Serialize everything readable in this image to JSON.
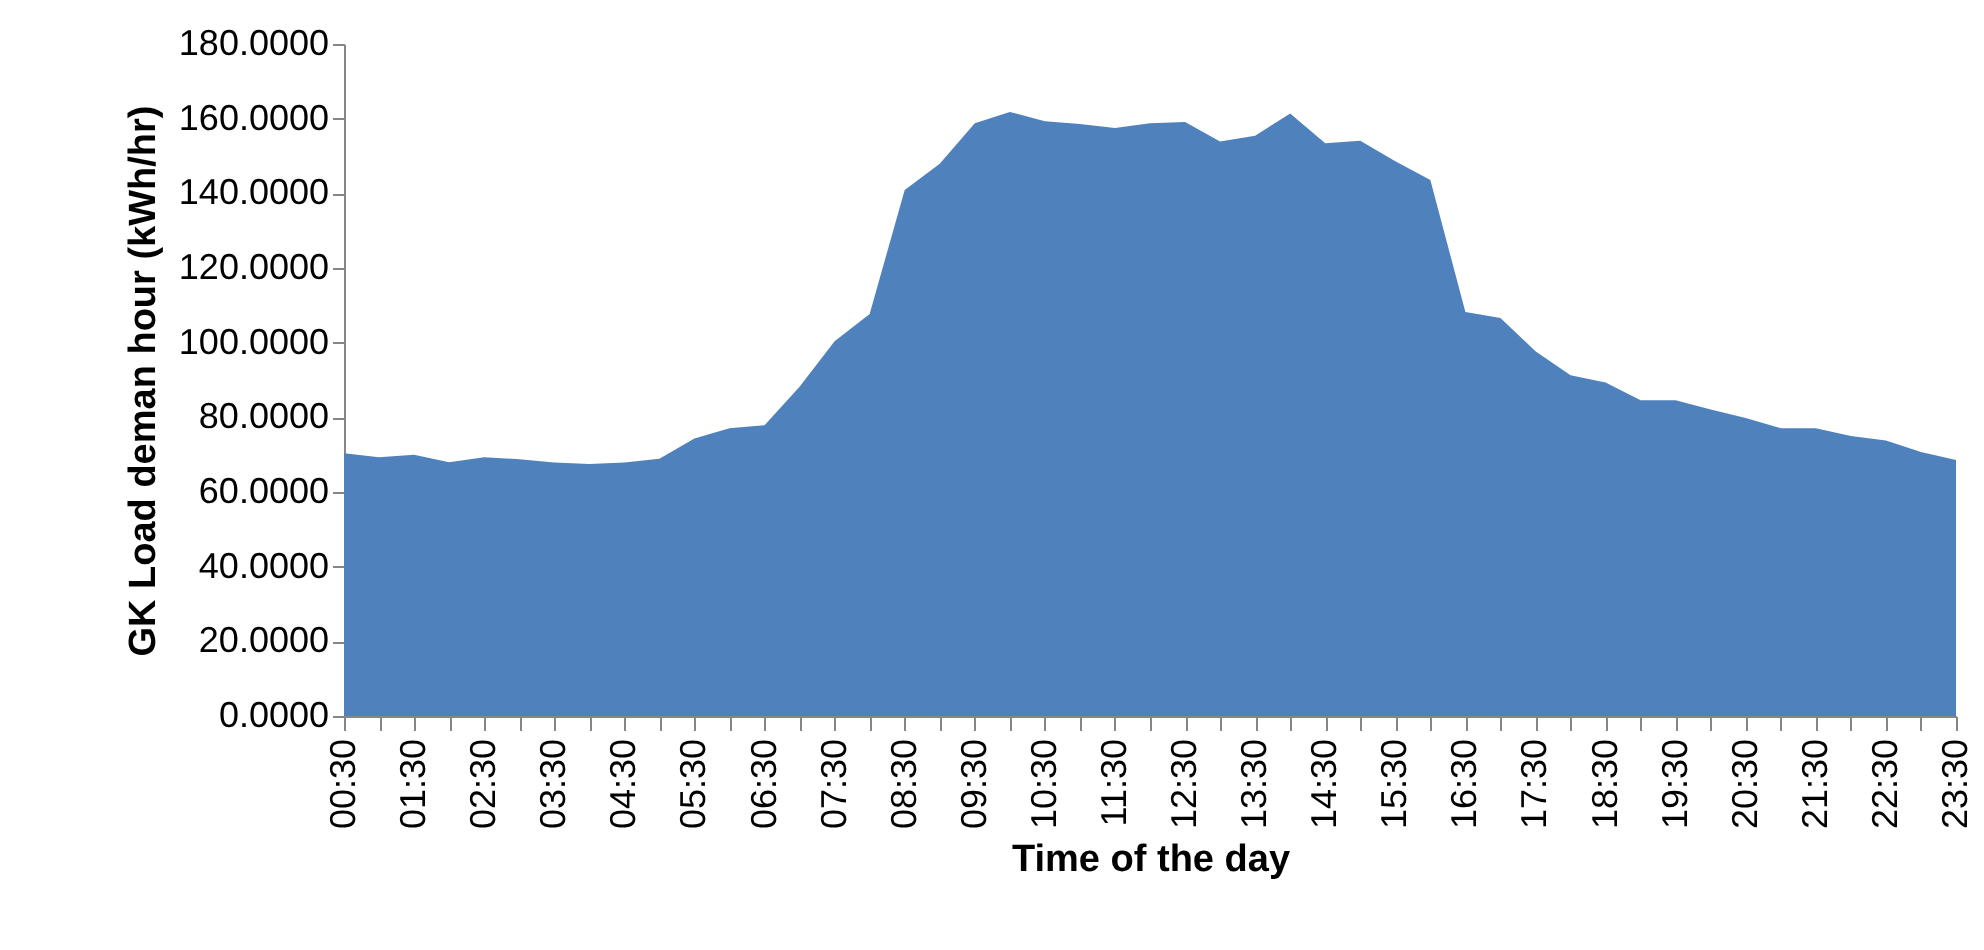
{
  "chart_data": {
    "type": "area",
    "xlabel": "Time of the day",
    "ylabel": "GK Load deman hour (kWh/hr)",
    "categories": [
      "00:30",
      null,
      "01:30",
      null,
      "02:30",
      null,
      "03:30",
      null,
      "04:30",
      null,
      "05:30",
      null,
      "06:30",
      null,
      "07:30",
      null,
      "08:30",
      null,
      "09:30",
      null,
      "10:30",
      null,
      "11:30",
      null,
      "12:30",
      null,
      "13:30",
      null,
      "14:30",
      null,
      "15:30",
      null,
      "16:30",
      null,
      "17:30",
      null,
      "18:30",
      null,
      "19:30",
      null,
      "20:30",
      null,
      "21:30",
      null,
      "22:30",
      null,
      "23:30"
    ],
    "series": [
      {
        "color": "#4f81bd",
        "values": [
          70.4,
          69.3,
          70.0,
          68.0,
          69.3,
          68.8,
          67.9,
          67.5,
          67.9,
          68.9,
          74.3,
          77.1,
          77.9,
          88.2,
          100.4,
          107.7,
          140.9,
          147.9,
          158.8,
          161.8,
          159.3,
          158.6,
          157.5,
          158.8,
          159.1,
          153.9,
          155.4,
          161.4,
          153.4,
          154.1,
          148.6,
          143.6,
          108.2,
          106.6,
          97.7,
          91.3,
          89.3,
          84.6,
          84.6,
          82.1,
          79.8,
          77.1,
          77.1,
          75.0,
          73.8,
          70.7,
          68.6
        ]
      }
    ],
    "ylim": [
      0,
      180
    ],
    "yticks": [
      {
        "value": 0,
        "label": "0.0000"
      },
      {
        "value": 20,
        "label": "20.0000"
      },
      {
        "value": 40,
        "label": "40.0000"
      },
      {
        "value": 60,
        "label": "60.0000"
      },
      {
        "value": 80,
        "label": "80.0000"
      },
      {
        "value": 100,
        "label": "100.0000"
      },
      {
        "value": 120,
        "label": "120.0000"
      },
      {
        "value": 140,
        "label": "140.0000"
      },
      {
        "value": 160,
        "label": "160.0000"
      },
      {
        "value": 180,
        "label": "180.0000"
      }
    ],
    "grid": false
  }
}
